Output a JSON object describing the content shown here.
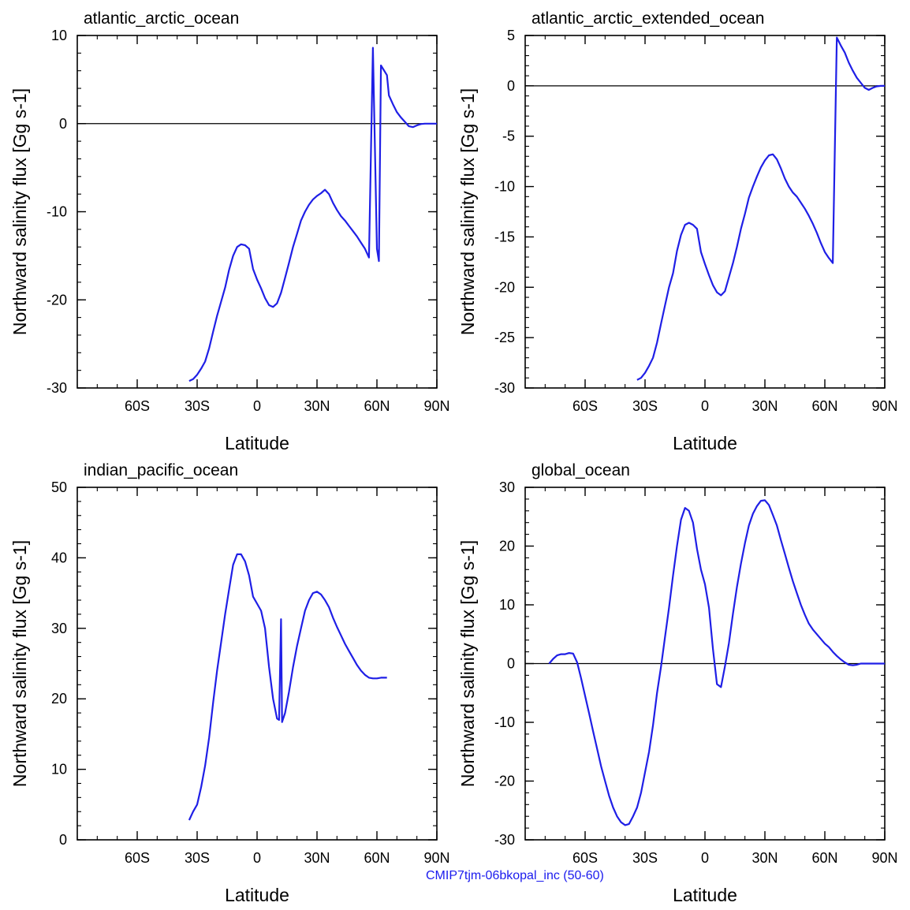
{
  "footer": "CMIP7tjm-06bkopal_inc (50-60)",
  "chart_data": [
    {
      "type": "line",
      "title": "atlantic_arctic_ocean",
      "xlabel": "Latitude",
      "ylabel": "Northward salinity flux [Gg s-1]",
      "xlim": [
        -90,
        90
      ],
      "ylim": [
        -30,
        10
      ],
      "xticks": [
        -60,
        -30,
        0,
        30,
        60,
        90
      ],
      "xtick_labels": [
        "60S",
        "30S",
        "0",
        "30N",
        "60N",
        "90N"
      ],
      "yticks": [
        -30,
        -20,
        -10,
        0,
        10
      ],
      "ytick_labels": [
        "-30",
        "-20",
        "-10",
        "0",
        "10"
      ],
      "zero_line": true,
      "line_color": "#1f1fe6",
      "series": [
        {
          "x": [
            -34,
            -32,
            -30,
            -28,
            -26,
            -24,
            -22,
            -20,
            -18,
            -16,
            -14,
            -12,
            -10,
            -8,
            -6,
            -4,
            -2,
            0,
            2,
            4,
            6,
            8,
            10,
            12,
            14,
            16,
            18,
            20,
            22,
            24,
            26,
            28,
            30,
            32,
            34,
            36,
            38,
            40,
            42,
            44,
            46,
            48,
            50,
            52,
            54,
            56,
            58,
            60,
            61,
            62,
            65,
            66,
            68,
            70,
            72,
            74,
            76,
            78,
            80,
            82,
            84,
            86,
            88,
            90
          ],
          "y": [
            -29.2,
            -29,
            -28.5,
            -27.8,
            -27,
            -25.5,
            -23.6,
            -21.8,
            -20.2,
            -18.6,
            -16.6,
            -15,
            -14,
            -13.7,
            -13.8,
            -14.2,
            -16.5,
            -17.7,
            -18.7,
            -19.8,
            -20.6,
            -20.8,
            -20.4,
            -19.2,
            -17.5,
            -15.8,
            -14,
            -12.5,
            -11,
            -10,
            -9.2,
            -8.6,
            -8.2,
            -7.9,
            -7.5,
            -8,
            -9,
            -9.8,
            -10.5,
            -11,
            -11.6,
            -12.2,
            -12.8,
            -13.5,
            -14.2,
            -15.2,
            8.6,
            -14.2,
            -15.6,
            6.6,
            5.5,
            3.2,
            2.2,
            1.3,
            0.7,
            0.2,
            -0.3,
            -0.4,
            -0.2,
            -0.05,
            0,
            0,
            0,
            0
          ]
        }
      ]
    },
    {
      "type": "line",
      "title": "atlantic_arctic_extended_ocean",
      "xlabel": "Latitude",
      "ylabel": "Northward salinity flux [Gg s-1]",
      "xlim": [
        -90,
        90
      ],
      "ylim": [
        -30,
        5
      ],
      "xticks": [
        -60,
        -30,
        0,
        30,
        60,
        90
      ],
      "xtick_labels": [
        "60S",
        "30S",
        "0",
        "30N",
        "60N",
        "90N"
      ],
      "yticks": [
        -30,
        -25,
        -20,
        -15,
        -10,
        -5,
        0,
        5
      ],
      "ytick_labels": [
        "-30",
        "-25",
        "-20",
        "-15",
        "-10",
        "-5",
        "0",
        "5"
      ],
      "zero_line": true,
      "line_color": "#1f1fe6",
      "series": [
        {
          "x": [
            -34,
            -32,
            -30,
            -28,
            -26,
            -24,
            -22,
            -20,
            -18,
            -16,
            -14,
            -12,
            -10,
            -8,
            -6,
            -4,
            -2,
            0,
            2,
            4,
            6,
            8,
            10,
            12,
            14,
            16,
            18,
            20,
            22,
            24,
            26,
            28,
            30,
            32,
            34,
            36,
            38,
            40,
            42,
            44,
            46,
            48,
            50,
            52,
            54,
            56,
            58,
            60,
            62,
            64,
            66,
            68,
            70,
            72,
            74,
            76,
            78,
            80,
            82,
            84,
            86,
            88,
            90
          ],
          "y": [
            -29.2,
            -29,
            -28.5,
            -27.8,
            -27,
            -25.5,
            -23.6,
            -21.8,
            -20,
            -18.6,
            -16.4,
            -14.8,
            -13.8,
            -13.6,
            -13.8,
            -14.2,
            -16.5,
            -17.7,
            -18.8,
            -19.8,
            -20.5,
            -20.8,
            -20.4,
            -19,
            -17.6,
            -16,
            -14.2,
            -12.7,
            -11.1,
            -10,
            -9,
            -8.1,
            -7.4,
            -6.9,
            -6.8,
            -7.3,
            -8.2,
            -9.2,
            -10,
            -10.6,
            -11,
            -11.6,
            -12.2,
            -12.9,
            -13.7,
            -14.6,
            -15.6,
            -16.5,
            -17.1,
            -17.6,
            4.8,
            4,
            3.3,
            2.3,
            1.5,
            0.8,
            0.3,
            -0.2,
            -0.4,
            -0.2,
            -0.05,
            0,
            0
          ]
        }
      ]
    },
    {
      "type": "line",
      "title": "indian_pacific_ocean",
      "xlabel": "Latitude",
      "ylabel": "Northward salinity flux [Gg s-1]",
      "xlim": [
        -90,
        90
      ],
      "ylim": [
        0,
        50
      ],
      "xticks": [
        -60,
        -30,
        0,
        30,
        60,
        90
      ],
      "xtick_labels": [
        "60S",
        "30S",
        "0",
        "30N",
        "60N",
        "90N"
      ],
      "yticks": [
        0,
        10,
        20,
        30,
        40,
        50
      ],
      "ytick_labels": [
        "0",
        "10",
        "20",
        "30",
        "40",
        "50"
      ],
      "zero_line": false,
      "line_color": "#1f1fe6",
      "series": [
        {
          "x": [
            -34,
            -32,
            -30,
            -28,
            -26,
            -24,
            -22,
            -20,
            -18,
            -16,
            -14,
            -12,
            -10,
            -8,
            -6,
            -4,
            -2,
            0,
            2,
            4,
            6,
            8,
            10,
            11,
            12,
            12.5,
            14,
            16,
            18,
            20,
            22,
            24,
            26,
            28,
            30,
            32,
            34,
            36,
            38,
            40,
            42,
            44,
            46,
            48,
            50,
            52,
            54,
            56,
            58,
            60,
            62,
            64,
            65
          ],
          "y": [
            2.8,
            4,
            5,
            7.5,
            10.5,
            14.5,
            19.5,
            24,
            28,
            32,
            35.5,
            39,
            40.5,
            40.5,
            39.5,
            37.5,
            34.5,
            33.5,
            32.5,
            30,
            24.5,
            20,
            17.2,
            17,
            31.3,
            16.7,
            18,
            21,
            24.5,
            27.5,
            30,
            32.5,
            34,
            35,
            35.2,
            34.8,
            34,
            33,
            31.5,
            30.2,
            29,
            27.8,
            26.8,
            25.8,
            24.8,
            24,
            23.4,
            23,
            22.9,
            22.9,
            23,
            23,
            23
          ]
        }
      ]
    },
    {
      "type": "line",
      "title": "global_ocean",
      "xlabel": "Latitude",
      "ylabel": "Northward salinity flux [Gg s-1]",
      "xlim": [
        -90,
        90
      ],
      "ylim": [
        -30,
        30
      ],
      "xticks": [
        -60,
        -30,
        0,
        30,
        60,
        90
      ],
      "xtick_labels": [
        "60S",
        "30S",
        "0",
        "30N",
        "60N",
        "90N"
      ],
      "yticks": [
        -30,
        -20,
        -10,
        0,
        10,
        20,
        30
      ],
      "ytick_labels": [
        "-30",
        "-20",
        "-10",
        "0",
        "10",
        "20",
        "30"
      ],
      "zero_line": true,
      "line_color": "#1f1fe6",
      "series": [
        {
          "x": [
            -78,
            -76,
            -74,
            -72,
            -70,
            -68,
            -66,
            -64,
            -62,
            -60,
            -58,
            -56,
            -54,
            -52,
            -50,
            -48,
            -46,
            -44,
            -42,
            -40,
            -38,
            -36,
            -34,
            -32,
            -30,
            -28,
            -26,
            -24,
            -22,
            -20,
            -18,
            -16,
            -14,
            -12,
            -10,
            -8,
            -6,
            -4,
            -2,
            0,
            2,
            4,
            6,
            8,
            10,
            12,
            14,
            16,
            18,
            20,
            22,
            24,
            26,
            28,
            30,
            32,
            34,
            36,
            38,
            40,
            42,
            44,
            46,
            48,
            50,
            52,
            54,
            56,
            58,
            60,
            62,
            64,
            66,
            68,
            70,
            72,
            74,
            76,
            78,
            80,
            82,
            84,
            86,
            88,
            90
          ],
          "y": [
            0,
            0.8,
            1.4,
            1.6,
            1.6,
            1.8,
            1.7,
            0.2,
            -2.5,
            -5.5,
            -8.5,
            -11.5,
            -14.5,
            -17.5,
            -20,
            -22.5,
            -24.5,
            -26,
            -27,
            -27.5,
            -27.3,
            -26,
            -24.5,
            -22,
            -18.5,
            -15,
            -10.5,
            -5,
            -0.5,
            4.5,
            9.5,
            15,
            20,
            24.5,
            26.5,
            26,
            24,
            19.5,
            16,
            13.5,
            9.5,
            2.5,
            -3.5,
            -4,
            -0.5,
            3.5,
            8.5,
            13,
            17,
            20.5,
            23.5,
            25.5,
            26.8,
            27.7,
            27.8,
            27,
            25.3,
            23.5,
            21,
            18.7,
            16.3,
            14,
            12,
            10,
            8.3,
            6.8,
            5.8,
            5,
            4.2,
            3.4,
            2.8,
            2,
            1.3,
            0.7,
            0.2,
            -0.2,
            -0.3,
            -0.2,
            0,
            0,
            0,
            0,
            0,
            0,
            0
          ]
        }
      ]
    }
  ]
}
